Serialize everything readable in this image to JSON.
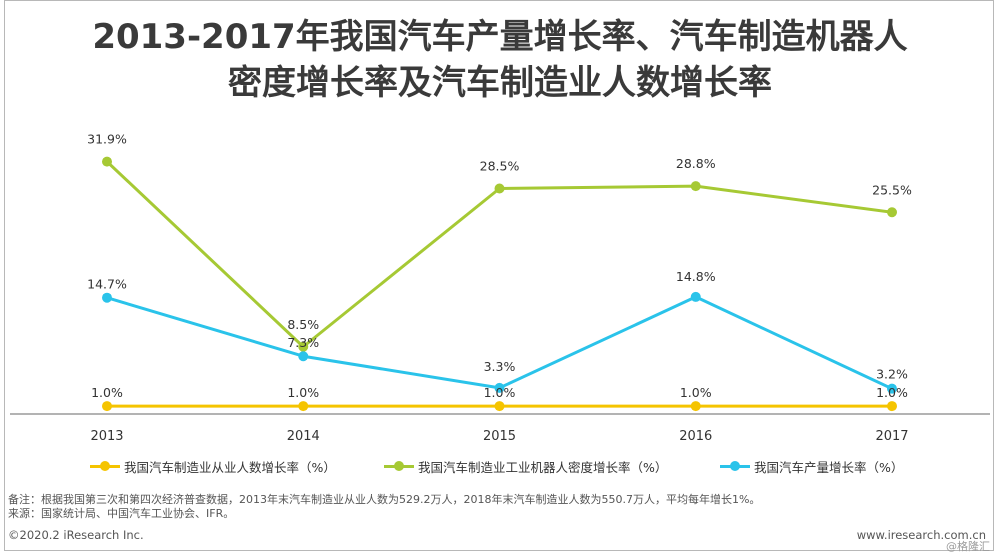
{
  "chart_data": {
    "type": "line",
    "title_line1": "2013-2017年我国汽车产量增长率、汽车制造机器人",
    "title_line2": "密度增长率及汽车制造业人数增长率",
    "categories": [
      "2013",
      "2014",
      "2015",
      "2016",
      "2017"
    ],
    "ylim": [
      0,
      34
    ],
    "grid": false,
    "legend_position": "bottom",
    "series": [
      {
        "name": "我国汽车制造业从业人数增长率（%）",
        "values": [
          1.0,
          1.0,
          1.0,
          1.0,
          1.0
        ],
        "labels": [
          "1.0%",
          "1.0%",
          "1.0%",
          "1.0%",
          "1.0%"
        ],
        "color": "#f5c400"
      },
      {
        "name": "我国汽车制造业工业机器人密度增长率（%）",
        "values": [
          31.9,
          8.5,
          28.5,
          28.8,
          25.5
        ],
        "labels": [
          "31.9%",
          "8.5%",
          "28.5%",
          "28.8%",
          "25.5%"
        ],
        "color": "#a6c934"
      },
      {
        "name": "我国汽车产量增长率（%）",
        "values": [
          14.7,
          7.3,
          3.3,
          14.8,
          3.2
        ],
        "labels": [
          "14.7%",
          "7.3%",
          "3.3%",
          "14.8%",
          "3.2%"
        ],
        "color": "#2ac3ea"
      }
    ]
  },
  "notes": {
    "line1": "备注：根据我国第三次和第四次经济普查数据，2013年末汽车制造业从业人数为529.2万人，2018年末汽车制造业人数为550.7万人，平均每年增长1%。",
    "line2": "来源：国家统计局、中国汽车工业协会、IFR。"
  },
  "footer": {
    "copyright": "©2020.2 iResearch Inc.",
    "website": "www.iresearch.com.cn",
    "watermark": "@格隆汇"
  },
  "colors": {
    "axis": "#9a9a9a",
    "text": "#333333"
  }
}
